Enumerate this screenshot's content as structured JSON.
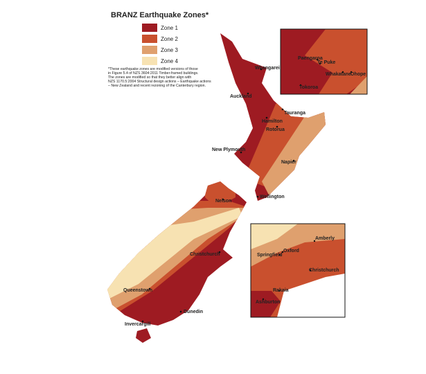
{
  "header": {
    "title": "BRANZ Earthquake Zones*"
  },
  "legend": {
    "items": [
      "Zone 1",
      "Zone 2",
      "Zone 3",
      "Zone 4"
    ]
  },
  "note": {
    "lines": [
      "*These earthquake zones are modified versions of those",
      "in Figure 5.4 of NZS 3604:2011 Timber-framed buildings.",
      "The zones are modified so that they better align with",
      "NZS 1170.5:2004 Structural design actions – Earthquake actions",
      "– New Zealand and recent rezoning of the Canterbury region."
    ]
  },
  "map": {
    "cities": [
      "Whangarei",
      "Auckland",
      "Tauranga",
      "Hamilton",
      "Rotorua",
      "New Plymouth",
      "Napier",
      "Wellington",
      "Nelson",
      "Christchurch",
      "Queenstown",
      "Dunedin",
      "Invercargill"
    ]
  },
  "inset_bay_of_plenty": {
    "cities": [
      "Paengaroa",
      "Te Puke",
      "Whakatane",
      "Ohope",
      "Tokoroa"
    ]
  },
  "inset_canterbury": {
    "cities": [
      "Amberly",
      "Oxford",
      "Springfield",
      "Christchurch",
      "Rakaia",
      "Ashburton"
    ]
  }
}
